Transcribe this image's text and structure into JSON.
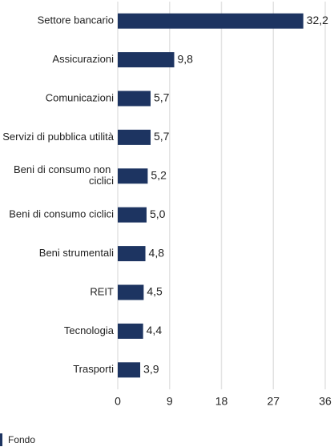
{
  "chart_data": {
    "type": "bar",
    "orientation": "horizontal",
    "categories": [
      "Settore bancario",
      "Assicurazioni",
      "Comunicazioni",
      "Servizi di pubblica utilità",
      "Beni di consumo non ciclici",
      "Beni di consumo ciclici",
      "Beni strumentali",
      "REIT",
      "Tecnologia",
      "Trasporti"
    ],
    "series": [
      {
        "name": "Fondo",
        "color": "#1d3461",
        "values": [
          32.2,
          9.8,
          5.7,
          5.7,
          5.2,
          5.0,
          4.8,
          4.5,
          4.4,
          3.9
        ],
        "value_labels": [
          "32,2",
          "9,8",
          "5,7",
          "5,7",
          "5,2",
          "5,0",
          "4,8",
          "4,5",
          "4,4",
          "3,9"
        ]
      }
    ],
    "xlim": [
      0,
      36
    ],
    "xticks": [
      0,
      9,
      18,
      27,
      36
    ],
    "grid": true,
    "legend": "bottom-left"
  }
}
